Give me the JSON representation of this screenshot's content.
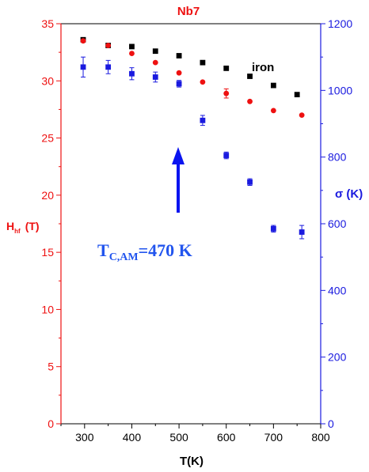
{
  "chart_data": {
    "type": "scatter",
    "title": "Nb7",
    "xlabel": "T(K)",
    "ylabel_left_main": "H",
    "ylabel_left_sub": "hf",
    "ylabel_left_unit": "(T)",
    "ylabel_right": "σ (K)",
    "xlim": [
      250,
      800
    ],
    "ylim_left": [
      0,
      35
    ],
    "ylim_right": [
      0,
      1200
    ],
    "x_ticks": [
      300,
      400,
      500,
      600,
      700,
      800
    ],
    "y_left_ticks": [
      0,
      5,
      10,
      15,
      20,
      25,
      30,
      35
    ],
    "y_right_ticks": [
      0,
      200,
      400,
      600,
      800,
      1000,
      1200
    ],
    "grid": false,
    "colors": {
      "left_axis": "#ee1111",
      "right_axis": "#1a1adf",
      "iron": "#000000",
      "hhf": "#ee1111",
      "sigma": "#1a1adf",
      "annotation": "#2255ee",
      "arrow": "#0a14f0"
    },
    "series": [
      {
        "name": "iron",
        "axis": "left",
        "marker": "square",
        "x": [
          297,
          350,
          400,
          450,
          500,
          550,
          600,
          650,
          700,
          750
        ],
        "y": [
          33.6,
          33.1,
          33.0,
          32.6,
          32.2,
          31.6,
          31.1,
          30.4,
          29.6,
          28.8
        ]
      },
      {
        "axis": "left",
        "marker": "circle",
        "x": [
          297,
          350,
          400,
          450,
          500,
          550,
          600,
          650,
          700,
          760
        ],
        "y": [
          33.5,
          33.1,
          32.4,
          31.6,
          30.7,
          29.9,
          28.9,
          28.2,
          27.4,
          27.0
        ],
        "err": [
          0,
          0,
          0,
          0,
          0,
          0,
          0.4,
          0,
          0,
          0
        ]
      },
      {
        "axis": "right",
        "marker": "square",
        "x": [
          297,
          350,
          400,
          450,
          500,
          550,
          600,
          650,
          700,
          760
        ],
        "y": [
          1070,
          1070,
          1050,
          1040,
          1020,
          910,
          805,
          725,
          585,
          575
        ],
        "err": [
          30,
          20,
          18,
          15,
          10,
          15,
          10,
          10,
          10,
          20
        ]
      }
    ],
    "annotation": {
      "main": "T",
      "sub": "C,AM",
      "rest": "=470 K"
    }
  }
}
